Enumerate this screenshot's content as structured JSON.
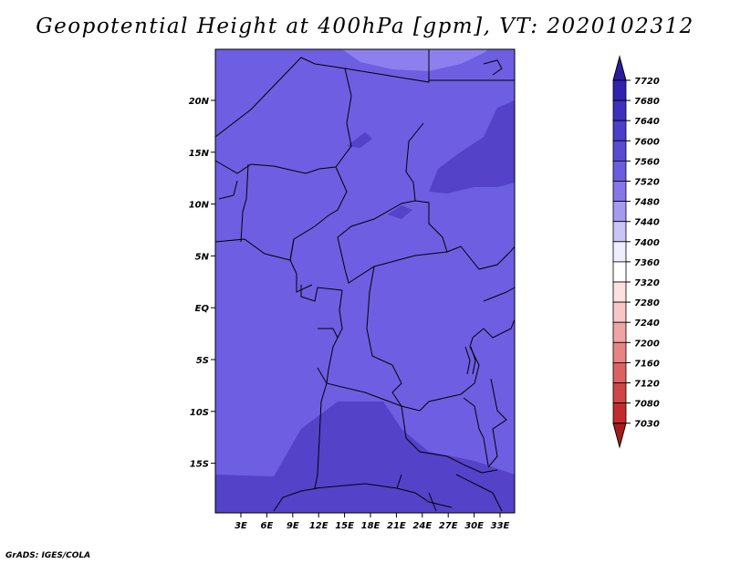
{
  "title": "Geopotential Height at 400hPa [gpm], VT: 2020102312",
  "credit": "GrADS: IGES/COLA",
  "map": {
    "lat_labels": [
      "20N",
      "15N",
      "10N",
      "5N",
      "EQ",
      "5S",
      "10S",
      "15S"
    ],
    "lon_labels": [
      "3E",
      "6E",
      "9E",
      "12E",
      "15E",
      "18E",
      "21E",
      "24E",
      "27E",
      "30E",
      "33E"
    ],
    "colors": {
      "base": "#6e5ee2",
      "high": "#5442c9",
      "low": "#8d80ee"
    }
  },
  "colorbar": {
    "labels": [
      "7720",
      "7680",
      "7640",
      "7600",
      "7560",
      "7520",
      "7480",
      "7440",
      "7400",
      "7360",
      "7320",
      "7280",
      "7240",
      "7200",
      "7160",
      "7120",
      "7080",
      "7030"
    ],
    "colors": [
      "#2d1aa1",
      "#3322b0",
      "#3f2fbd",
      "#4d3dc8",
      "#5a4bd3",
      "#6c5dde",
      "#8676e8",
      "#a49af0",
      "#c9c5f7",
      "#eeeeff",
      "#ffffff",
      "#fde0e0",
      "#f8c6c6",
      "#f0a4a4",
      "#e68484",
      "#dc6262",
      "#d04545",
      "#c12c2c",
      "#a81b1b"
    ]
  }
}
